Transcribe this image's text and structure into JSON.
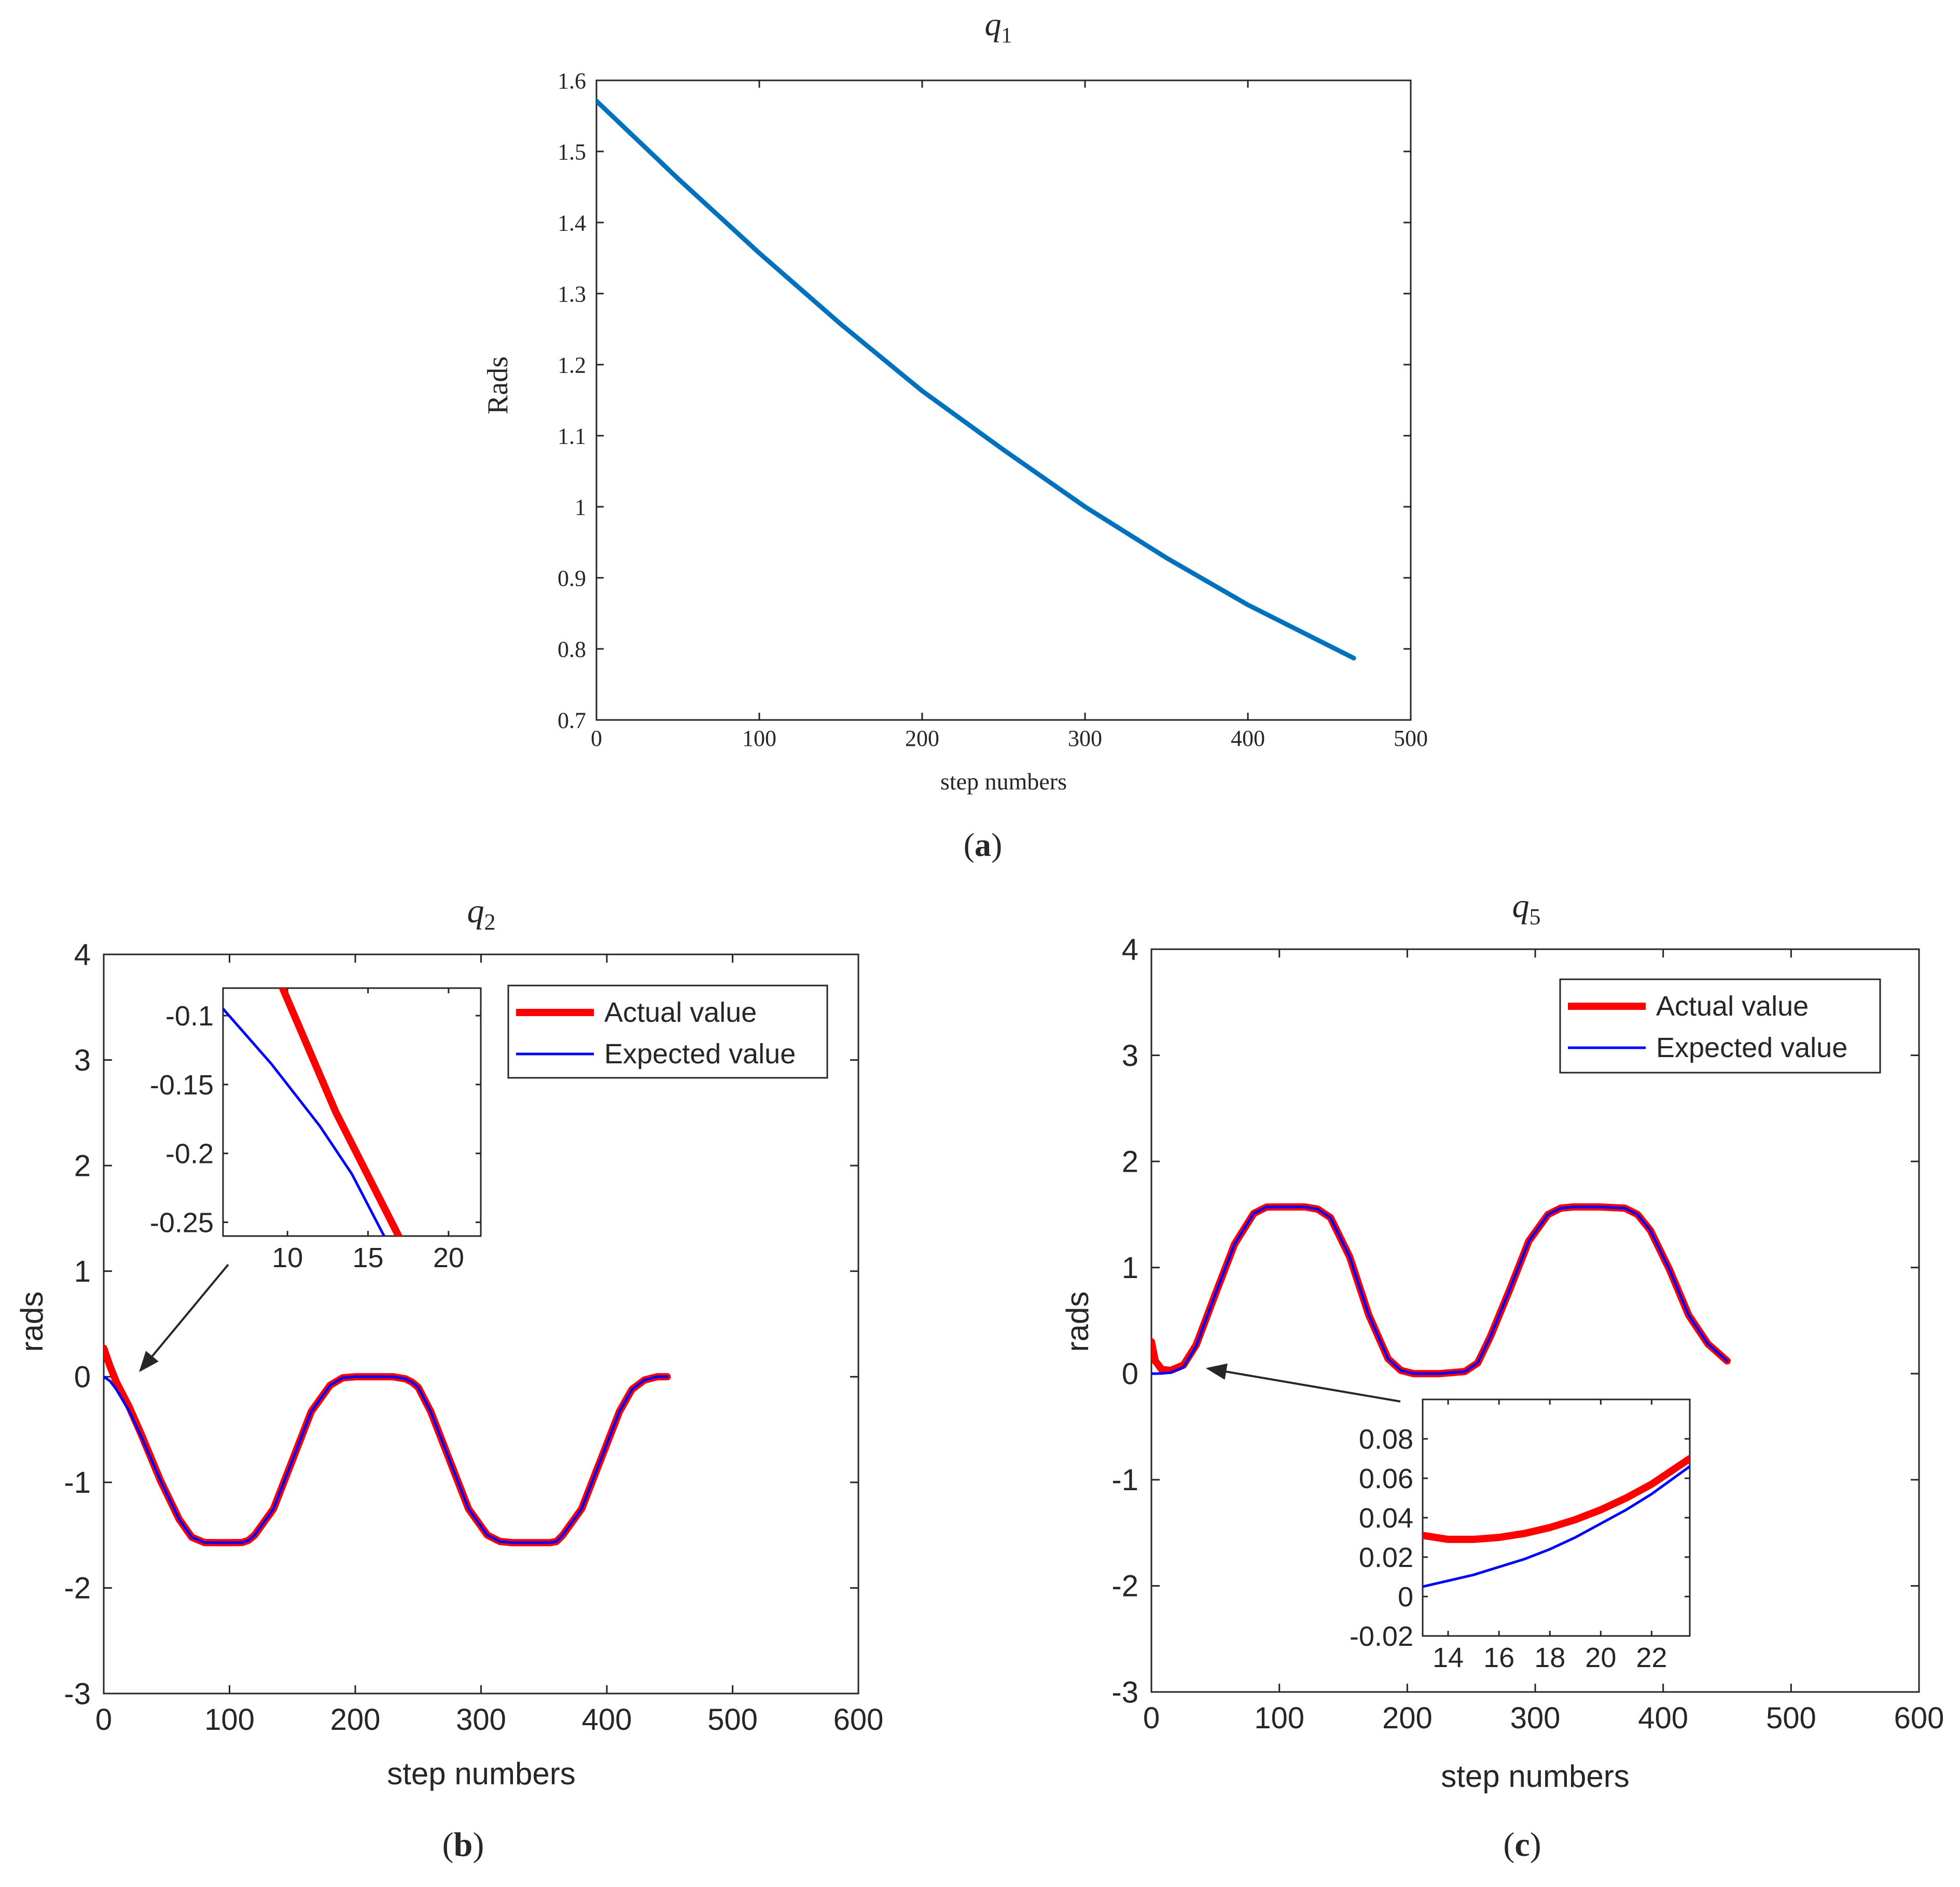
{
  "figure": {
    "panel_labels": {
      "a": "a",
      "b": "b",
      "c": "c"
    },
    "legend": {
      "actual": "Actual value",
      "expected": "Expected value"
    }
  },
  "colors": {
    "q1_line": "#0072bd",
    "actual": "#ff0000",
    "expected": "#0000ff",
    "axis": "#262626"
  },
  "chart_data": [
    {
      "id": "a",
      "type": "line",
      "title_symbol": "q",
      "title_subscript": "1",
      "xlabel": "step numbers",
      "ylabel": "Rads",
      "xlim": [
        0,
        500
      ],
      "ylim": [
        0.7,
        1.6
      ],
      "xticks": [
        0,
        100,
        200,
        300,
        400,
        500
      ],
      "xtick_labels": [
        "0",
        "100",
        "200",
        "300",
        "400",
        "500"
      ],
      "yticks": [
        0.7,
        0.8,
        0.9,
        1.0,
        1.1,
        1.2,
        1.3,
        1.4,
        1.5,
        1.6
      ],
      "ytick_labels": [
        "0.7",
        "0.8",
        "0.9",
        "1",
        "1.1",
        "1.2",
        "1.3",
        "1.4",
        "1.5",
        "1.6"
      ],
      "grid": false,
      "series": [
        {
          "name": "q1",
          "x": [
            0,
            50,
            100,
            150,
            200,
            250,
            300,
            350,
            400,
            465
          ],
          "y": [
            1.571,
            1.462,
            1.357,
            1.257,
            1.163,
            1.08,
            1.0,
            0.928,
            0.862,
            0.787
          ]
        }
      ]
    },
    {
      "id": "b",
      "type": "line",
      "title_symbol": "q",
      "title_subscript": "2",
      "xlabel": "step numbers",
      "ylabel": "rads",
      "xlim": [
        0,
        600
      ],
      "ylim": [
        -3,
        4
      ],
      "xticks": [
        0,
        100,
        200,
        300,
        400,
        500,
        600
      ],
      "xtick_labels": [
        "0",
        "100",
        "200",
        "300",
        "400",
        "500",
        "600"
      ],
      "yticks": [
        -3,
        -2,
        -1,
        0,
        1,
        2,
        3,
        4
      ],
      "ytick_labels": [
        "-3",
        "-2",
        "-1",
        "0",
        "1",
        "2",
        "3",
        "4"
      ],
      "legend_position": "top-right",
      "series": [
        {
          "name": "Actual value",
          "x": [
            0,
            5,
            10,
            20,
            30,
            45,
            60,
            70,
            80,
            90,
            100,
            110,
            115,
            120,
            135,
            150,
            165,
            180,
            190,
            200,
            215,
            230,
            240,
            245,
            250,
            260,
            275,
            290,
            305,
            315,
            325,
            335,
            355,
            360,
            365,
            380,
            395,
            410,
            420,
            430,
            440,
            448
          ],
          "y": [
            0.27,
            0.1,
            -0.05,
            -0.28,
            -0.55,
            -0.98,
            -1.35,
            -1.52,
            -1.57,
            -1.571,
            -1.571,
            -1.57,
            -1.55,
            -1.5,
            -1.25,
            -0.79,
            -0.33,
            -0.08,
            -0.01,
            0.0,
            0.0,
            0.0,
            -0.02,
            -0.05,
            -0.1,
            -0.33,
            -0.79,
            -1.25,
            -1.5,
            -1.56,
            -1.571,
            -1.571,
            -1.571,
            -1.56,
            -1.5,
            -1.25,
            -0.79,
            -0.33,
            -0.12,
            -0.03,
            0.0,
            0.0
          ]
        },
        {
          "name": "Expected value",
          "x": [
            0,
            5,
            10,
            20,
            30,
            45,
            60,
            70,
            80,
            90,
            100,
            110,
            115,
            120,
            135,
            150,
            165,
            180,
            190,
            200,
            215,
            230,
            240,
            245,
            250,
            260,
            275,
            290,
            305,
            315,
            325,
            335,
            355,
            360,
            365,
            380,
            395,
            410,
            420,
            430,
            440,
            448
          ],
          "y": [
            0.0,
            -0.04,
            -0.12,
            -0.32,
            -0.57,
            -0.98,
            -1.35,
            -1.52,
            -1.57,
            -1.571,
            -1.571,
            -1.57,
            -1.55,
            -1.5,
            -1.25,
            -0.79,
            -0.33,
            -0.08,
            -0.01,
            0.0,
            0.0,
            0.0,
            -0.02,
            -0.05,
            -0.1,
            -0.33,
            -0.79,
            -1.25,
            -1.5,
            -1.56,
            -1.571,
            -1.571,
            -1.571,
            -1.56,
            -1.5,
            -1.25,
            -0.79,
            -0.33,
            -0.12,
            -0.03,
            0.0,
            0.0
          ]
        }
      ],
      "inset": {
        "xlim": [
          6,
          22
        ],
        "ylim": [
          -0.26,
          -0.08
        ],
        "xticks": [
          10,
          15,
          20
        ],
        "xtick_labels": [
          "10",
          "15",
          "20"
        ],
        "yticks": [
          -0.25,
          -0.2,
          -0.15,
          -0.1
        ],
        "ytick_labels": [
          "-0.25",
          "-0.2",
          "-0.15",
          "-0.1"
        ],
        "series": [
          {
            "name": "Actual value",
            "x": [
              9.7,
              13.0,
              16.9
            ],
            "y": [
              -0.08,
              -0.17,
              -0.26
            ]
          },
          {
            "name": "Expected value",
            "x": [
              6,
              9,
              12,
              14,
              16.0
            ],
            "y": [
              -0.095,
              -0.135,
              -0.18,
              -0.215,
              -0.26
            ]
          }
        ],
        "arrow_target": {
          "x": 25,
          "y": 0
        }
      }
    },
    {
      "id": "c",
      "type": "line",
      "title_symbol": "q",
      "title_subscript": "5",
      "xlabel": "step numbers",
      "ylabel": "rads",
      "xlim": [
        0,
        600
      ],
      "ylim": [
        -3,
        4
      ],
      "xticks": [
        0,
        100,
        200,
        300,
        400,
        500,
        600
      ],
      "xtick_labels": [
        "0",
        "100",
        "200",
        "300",
        "400",
        "500",
        "600"
      ],
      "yticks": [
        -3,
        -2,
        -1,
        0,
        1,
        2,
        3,
        4
      ],
      "ytick_labels": [
        "-3",
        "-2",
        "-1",
        "0",
        "1",
        "2",
        "3",
        "4"
      ],
      "legend_position": "top-right",
      "series": [
        {
          "name": "Actual value",
          "x": [
            0,
            3,
            8,
            15,
            25,
            35,
            50,
            65,
            80,
            90,
            100,
            120,
            130,
            140,
            155,
            170,
            185,
            195,
            205,
            225,
            245,
            255,
            265,
            280,
            295,
            310,
            320,
            330,
            350,
            370,
            380,
            390,
            405,
            420,
            435,
            450
          ],
          "y": [
            0.3,
            0.12,
            0.04,
            0.03,
            0.08,
            0.27,
            0.75,
            1.22,
            1.51,
            1.57,
            1.571,
            1.571,
            1.55,
            1.47,
            1.1,
            0.55,
            0.14,
            0.03,
            0.0,
            0.0,
            0.02,
            0.1,
            0.35,
            0.79,
            1.25,
            1.5,
            1.56,
            1.571,
            1.571,
            1.56,
            1.5,
            1.35,
            0.98,
            0.55,
            0.28,
            0.12
          ]
        },
        {
          "name": "Expected value",
          "x": [
            0,
            3,
            8,
            15,
            25,
            35,
            50,
            65,
            80,
            90,
            100,
            120,
            130,
            140,
            155,
            170,
            185,
            195,
            205,
            225,
            245,
            255,
            265,
            280,
            295,
            310,
            320,
            330,
            350,
            370,
            380,
            390,
            405,
            420,
            435,
            450
          ],
          "y": [
            0.0,
            0.0,
            0.002,
            0.01,
            0.06,
            0.26,
            0.75,
            1.22,
            1.51,
            1.57,
            1.571,
            1.571,
            1.55,
            1.47,
            1.1,
            0.55,
            0.14,
            0.03,
            0.0,
            0.0,
            0.02,
            0.1,
            0.35,
            0.79,
            1.25,
            1.5,
            1.56,
            1.571,
            1.571,
            1.56,
            1.5,
            1.35,
            0.98,
            0.55,
            0.28,
            0.12
          ]
        }
      ],
      "inset": {
        "xlim": [
          13,
          23.5
        ],
        "ylim": [
          -0.02,
          0.1
        ],
        "xticks": [
          14,
          16,
          18,
          20,
          22
        ],
        "xtick_labels": [
          "14",
          "16",
          "18",
          "20",
          "22"
        ],
        "yticks": [
          -0.02,
          0,
          0.02,
          0.04,
          0.06,
          0.08
        ],
        "ytick_labels": [
          "-0.02",
          "0",
          "0.02",
          "0.04",
          "0.06",
          "0.08"
        ],
        "series": [
          {
            "name": "Actual value",
            "x": [
              13,
              14,
              15,
              16,
              17,
              18,
              19,
              20,
              21,
              22,
              23.5
            ],
            "y": [
              0.031,
              0.029,
              0.029,
              0.03,
              0.032,
              0.035,
              0.039,
              0.044,
              0.05,
              0.057,
              0.07
            ]
          },
          {
            "name": "Expected value",
            "x": [
              13,
              14,
              15,
              16,
              17,
              18,
              19,
              20,
              21,
              22,
              23.5
            ],
            "y": [
              0.005,
              0.008,
              0.011,
              0.015,
              0.019,
              0.024,
              0.03,
              0.037,
              0.044,
              0.052,
              0.066
            ]
          }
        ],
        "arrow_target": {
          "x": 38,
          "y": 0
        }
      }
    }
  ]
}
